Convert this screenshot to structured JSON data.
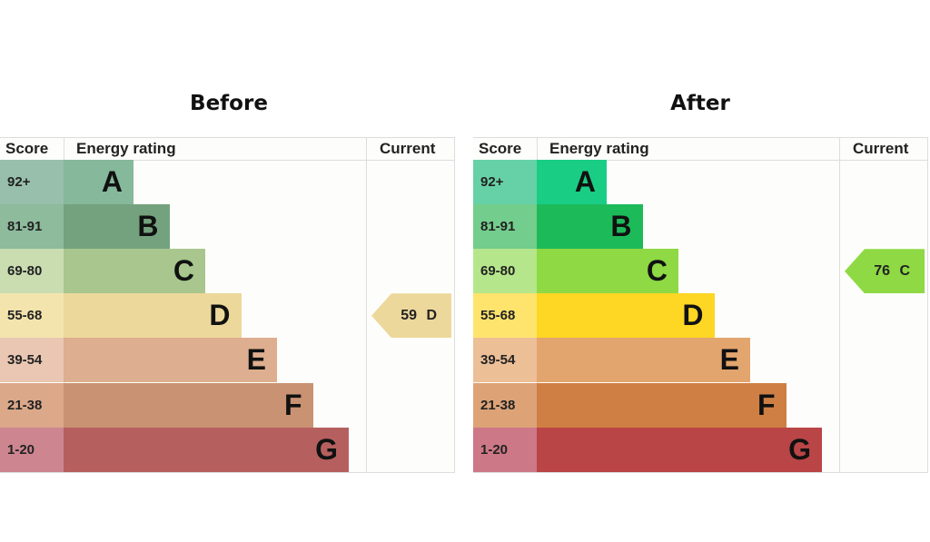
{
  "chart_data": [
    {
      "type": "bar",
      "title": "Before",
      "headers": {
        "score": "Score",
        "rating": "Energy rating",
        "current": "Current"
      },
      "bands": [
        {
          "score": "92+",
          "letter": "A",
          "bar_color": "#86b89b",
          "score_color": "#97bfab"
        },
        {
          "score": "81-91",
          "letter": "B",
          "bar_color": "#74a27e",
          "score_color": "#8dbb9c"
        },
        {
          "score": "69-80",
          "letter": "C",
          "bar_color": "#a8c68d",
          "score_color": "#c9ddb1"
        },
        {
          "score": "55-68",
          "letter": "D",
          "bar_color": "#edd89b",
          "score_color": "#f3e4ad"
        },
        {
          "score": "39-54",
          "letter": "E",
          "bar_color": "#ddae8f",
          "score_color": "#e9c7b2"
        },
        {
          "score": "21-38",
          "letter": "F",
          "bar_color": "#c99272",
          "score_color": "#dba88a"
        },
        {
          "score": "1-20",
          "letter": "G",
          "bar_color": "#b5605f",
          "score_color": "#cd8590"
        }
      ],
      "current": {
        "value": 59,
        "letter": "D",
        "label": "59 D",
        "band_index": 3,
        "color": "#edd89b"
      }
    },
    {
      "type": "bar",
      "title": "After",
      "headers": {
        "score": "Score",
        "rating": "Energy rating",
        "current": "Current"
      },
      "bands": [
        {
          "score": "92+",
          "letter": "A",
          "bar_color": "#19cd85",
          "score_color": "#66d1a6"
        },
        {
          "score": "81-91",
          "letter": "B",
          "bar_color": "#1dba5a",
          "score_color": "#73cd8c"
        },
        {
          "score": "69-80",
          "letter": "C",
          "bar_color": "#8ed944",
          "score_color": "#b6e68b"
        },
        {
          "score": "55-68",
          "letter": "D",
          "bar_color": "#fed624",
          "score_color": "#fee46d"
        },
        {
          "score": "39-54",
          "letter": "E",
          "bar_color": "#e3a56e",
          "score_color": "#ecbf97"
        },
        {
          "score": "21-38",
          "letter": "F",
          "bar_color": "#cf7f44",
          "score_color": "#dda377"
        },
        {
          "score": "1-20",
          "letter": "G",
          "bar_color": "#b94546",
          "score_color": "#cd7886"
        }
      ],
      "current": {
        "value": 76,
        "letter": "C",
        "label": "76 C",
        "band_index": 2,
        "color": "#8ed944"
      }
    }
  ]
}
